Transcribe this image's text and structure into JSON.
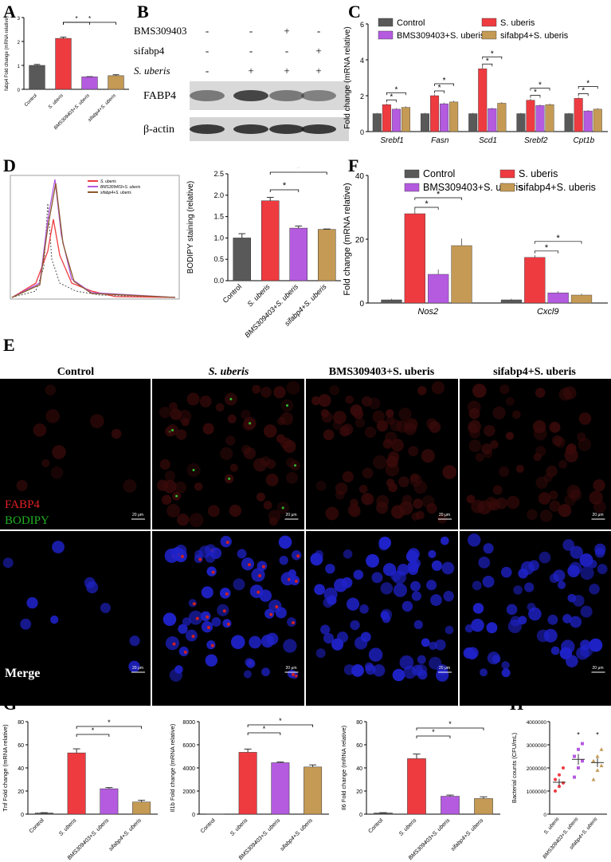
{
  "panel_labels": {
    "A": "A",
    "B": "B",
    "C": "C",
    "D": "D",
    "E": "E",
    "F": "F",
    "G": "G",
    "H": "H"
  },
  "colors": {
    "control": "#595959",
    "s_uberis": "#ee3b40",
    "bms": "#b45be0",
    "sifabp4": "#c49a55",
    "overlay_black": "#000000"
  },
  "blot": {
    "rows": [
      {
        "label": "BMS309403",
        "signs": [
          "-",
          "-",
          "+",
          "-"
        ]
      },
      {
        "label": "sifabp4",
        "signs": [
          "-",
          "-",
          "-",
          "+"
        ]
      },
      {
        "label": "S. uberis",
        "signs": [
          "-",
          "+",
          "+",
          "+"
        ]
      }
    ],
    "bands": [
      "FABP4",
      "β-actin"
    ]
  },
  "micro": {
    "columns": [
      "Control",
      "S. uberis",
      "BMS309403+S. uberis",
      "sifabp4+S. uberis"
    ],
    "row1_labels": [
      "FABP4",
      "BODIPY"
    ],
    "row2_label": "Merge",
    "scale_bar": "20 μm"
  },
  "chart_data": [
    {
      "id": "A",
      "type": "bar",
      "ylabel": "fabp4 Fold change (mRNA relative)",
      "categories": [
        "Control",
        "S. uberis",
        "BMS309403+S. uberis",
        "sifabp4+S. uberis"
      ],
      "values": [
        1.0,
        2.13,
        0.52,
        0.57
      ],
      "errors": [
        0.04,
        0.05,
        0.01,
        0.04
      ],
      "ylim": [
        0,
        3
      ],
      "yticks": [
        0,
        1,
        2,
        3
      ],
      "sig": [
        {
          "from": 1,
          "to": 2,
          "label": "*"
        },
        {
          "from": 1,
          "to": 3,
          "label": "*"
        }
      ]
    },
    {
      "id": "C",
      "type": "bar",
      "ylabel": "Fold change (mRNA relative)",
      "categories": [
        "Srebf1",
        "Fasn",
        "Scd1",
        "Srebf2",
        "Cpt1b"
      ],
      "series": [
        {
          "name": "Control",
          "values": [
            1.0,
            1.0,
            1.0,
            1.0,
            1.0
          ]
        },
        {
          "name": "S. uberis",
          "values": [
            1.5,
            2.0,
            3.5,
            1.75,
            1.85
          ]
        },
        {
          "name": "BMS309403+S. uberis",
          "values": [
            1.25,
            1.55,
            1.28,
            1.45,
            1.15
          ]
        },
        {
          "name": "sifabp4+S. uberis",
          "values": [
            1.35,
            1.65,
            1.58,
            1.5,
            1.25
          ]
        }
      ],
      "ylim": [
        0,
        6
      ],
      "yticks": [
        0,
        2,
        4,
        6
      ],
      "legend": "top"
    },
    {
      "id": "D",
      "type": "bar",
      "ylabel": "BODIPY staining (relative)",
      "categories": [
        "Control",
        "S. uberis",
        "BMS309403+S. uberis",
        "sifabp4+S. uberis"
      ],
      "values": [
        1.0,
        1.87,
        1.23,
        1.2
      ],
      "errors": [
        0.1,
        0.08,
        0.05,
        0.01
      ],
      "ylim": [
        0,
        2.5
      ],
      "yticks": [
        0.0,
        0.5,
        1.0,
        1.5,
        2.0,
        2.5
      ],
      "sig": [
        {
          "from": 1,
          "to": 2,
          "label": "*"
        },
        {
          "from": 1,
          "to": 3,
          "label": "*"
        }
      ],
      "histogram_legend": [
        "S. uberis",
        "BMS309403+S. uberis",
        "sifabp4+S. uberis"
      ]
    },
    {
      "id": "F",
      "type": "bar",
      "ylabel": "Fold change (mRNA relative)",
      "categories": [
        "Nos2",
        "Cxcl9"
      ],
      "series": [
        {
          "name": "Control",
          "values": [
            1.0,
            1.0
          ]
        },
        {
          "name": "S. uberis",
          "values": [
            28,
            14.3
          ]
        },
        {
          "name": "BMS309403+S. uberis",
          "values": [
            9,
            3.2
          ]
        },
        {
          "name": "sifabp4+S. uberis",
          "values": [
            18,
            2.5
          ]
        }
      ],
      "errors": [
        [
          0.3,
          0.3
        ],
        [
          1.2,
          0.7
        ],
        [
          1.5,
          0.5
        ],
        [
          2.2,
          0.4
        ]
      ],
      "ylim": [
        0,
        40
      ],
      "yticks": [
        0,
        20,
        40
      ],
      "legend": "top"
    },
    {
      "id": "G1",
      "type": "bar",
      "ylabel": "Tnf Fold change (mRNA relative)",
      "categories": [
        "Control",
        "S. uberis",
        "BMS309403+S. uberis",
        "sifabp4+S. uberis"
      ],
      "values": [
        1,
        53,
        22,
        10.5
      ],
      "errors": [
        0.3,
        3.5,
        1,
        1.5
      ],
      "ylim": [
        0,
        80
      ],
      "yticks": [
        0,
        20,
        40,
        60,
        80
      ],
      "sig": [
        {
          "from": 1,
          "to": 2,
          "label": "*"
        },
        {
          "from": 1,
          "to": 3,
          "label": "*"
        }
      ]
    },
    {
      "id": "G2",
      "type": "bar",
      "ylabel": "Il1b Fold change (mRNA relative)",
      "categories": [
        "Control",
        "S. uberis",
        "BMS309403+S. uberis",
        "sifabp4+S. uberis"
      ],
      "values": [
        1,
        5350,
        4450,
        4080
      ],
      "errors": [
        0,
        280,
        60,
        180
      ],
      "ylim": [
        0,
        8000
      ],
      "yticks": [
        0,
        2000,
        4000,
        6000,
        8000
      ],
      "sig": [
        {
          "from": 1,
          "to": 2,
          "label": "*"
        },
        {
          "from": 1,
          "to": 3,
          "label": "*"
        }
      ]
    },
    {
      "id": "G3",
      "type": "bar",
      "ylabel": "Il6 Fold change (mRNA relative)",
      "categories": [
        "Control",
        "S. uberis",
        "BMS309403+S. uberis",
        "sifabp4+S. uberis"
      ],
      "values": [
        1,
        48,
        15.5,
        13.5
      ],
      "errors": [
        0.3,
        4,
        1,
        1.5
      ],
      "ylim": [
        0,
        80
      ],
      "yticks": [
        0,
        20,
        40,
        60,
        80
      ],
      "sig": [
        {
          "from": 1,
          "to": 2,
          "label": "*"
        },
        {
          "from": 1,
          "to": 3,
          "label": "*"
        }
      ]
    },
    {
      "id": "H",
      "type": "scatter",
      "ylabel": "Bacterial counts (CFU/mL)",
      "categories": [
        "S. uberis",
        "BMS309403+S. uberis",
        "sifabp4+S. uberis"
      ],
      "points": [
        [
          1000000,
          1200000,
          1350000,
          1500000,
          1700000,
          2000000
        ],
        [
          1600000,
          2000000,
          2300000,
          2500000,
          2800000,
          3050000
        ],
        [
          1500000,
          1900000,
          2100000,
          2300000,
          2500000,
          2800000
        ]
      ],
      "means": [
        1380000,
        2370000,
        2230000
      ],
      "errors": [
        150000,
        230000,
        190000
      ],
      "ylim": [
        0,
        4000000
      ],
      "yticks": [
        0,
        1000000,
        2000000,
        3000000,
        4000000
      ],
      "marks": [
        "",
        "*",
        "*"
      ]
    }
  ]
}
